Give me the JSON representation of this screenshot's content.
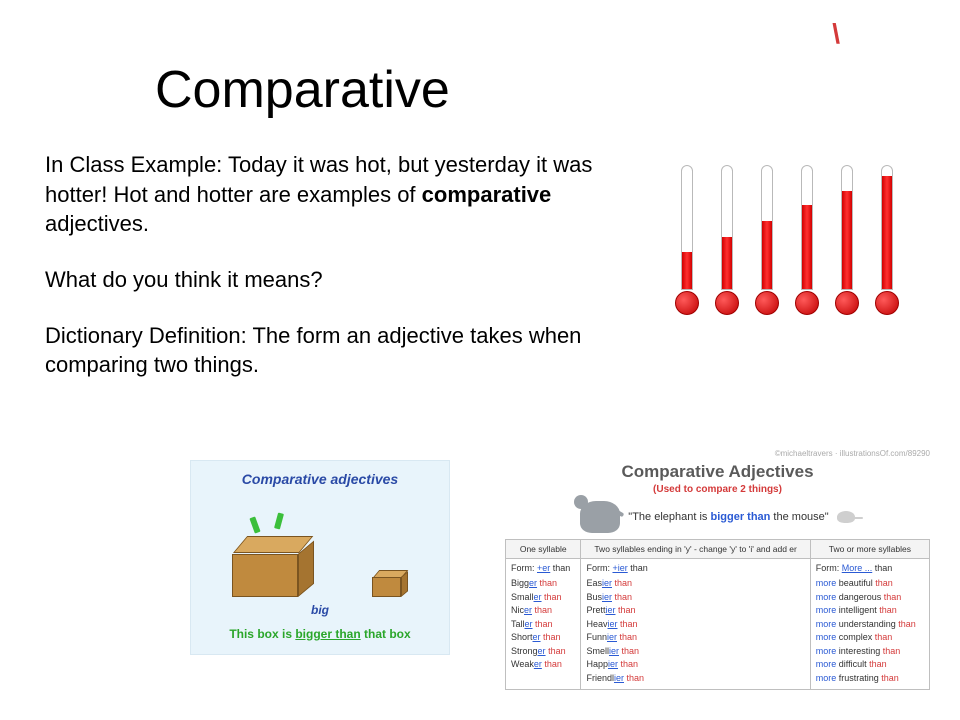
{
  "accent_color": "#d43a3a",
  "title": "Comparative",
  "body": {
    "p1_a": "In Class Example: Today it was hot, but yesterday it was hotter! Hot and hotter are examples of ",
    "p1_bold": "comparative",
    "p1_b": " adjectives.",
    "p2": "What do you think it means?",
    "p3": "Dictionary Definition: The form an adjective takes when comparing two things."
  },
  "thermometers": {
    "fill_pct": [
      30,
      42,
      55,
      68,
      80,
      92
    ],
    "fill_color": "#d10000"
  },
  "left_pic": {
    "title": "Comparative adjectives",
    "label_big": "big",
    "sentence_a": "This box is ",
    "sentence_key": "bigger than",
    "sentence_b": " that box"
  },
  "right_pic": {
    "credit": "©michaeltravers · illustrationsOf.com/89290",
    "title": "Comparative Adjectives",
    "subtitle": "(Used to compare 2 things)",
    "example_a": "\"The elephant is ",
    "example_key": "bigger than",
    "example_b": " the mouse\"",
    "cols": [
      "One syllable",
      "Two syllables ending in 'y' - change 'y' to 'i' and add er",
      "Two or more syllables"
    ],
    "forms": [
      {
        "label": "Form: ",
        "rule_u": "+er",
        "rule_after": " than"
      },
      {
        "label": "Form: ",
        "rule_u": "+ier",
        "rule_after": " than"
      },
      {
        "label": "Form: ",
        "rule_u": "More ...",
        "rule_after": " than"
      }
    ],
    "col1": [
      "Bigg",
      "Small",
      "Nic",
      "Tall",
      "Short",
      "Strong",
      "Weak"
    ],
    "col2": [
      "Eas",
      "Bus",
      "Prett",
      "Heav",
      "Funn",
      "Smell",
      "Happ",
      "Friendl"
    ],
    "col3": [
      "beautiful",
      "dangerous",
      "intelligent",
      "understanding",
      "complex",
      "interesting",
      "difficult",
      "frustrating"
    ]
  }
}
